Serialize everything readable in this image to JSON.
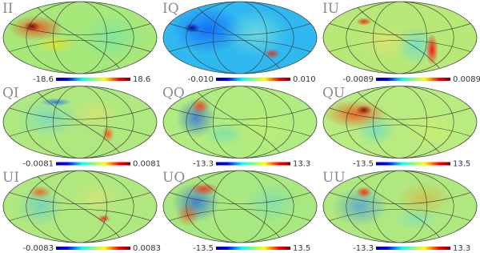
{
  "panels": [
    {
      "label": "II",
      "colorbar": {
        "min": "-18.6",
        "max": "18.6"
      }
    },
    {
      "label": "IQ",
      "colorbar": {
        "min": "-0.010",
        "max": "0.010"
      }
    },
    {
      "label": "IU",
      "colorbar": {
        "min": "-0.0089",
        "max": "0.0089"
      }
    },
    {
      "label": "QI",
      "colorbar": {
        "min": "-0.0081",
        "max": "0.0081"
      }
    },
    {
      "label": "QQ",
      "colorbar": {
        "min": "-13.3",
        "max": "13.3"
      }
    },
    {
      "label": "QU",
      "colorbar": {
        "min": "-13.5",
        "max": "13.5"
      }
    },
    {
      "label": "UI",
      "colorbar": {
        "min": "-0.0083",
        "max": "0.0083"
      }
    },
    {
      "label": "UQ",
      "colorbar": {
        "min": "-13.5",
        "max": "13.5"
      }
    },
    {
      "label": "UU",
      "colorbar": {
        "min": "-13.3",
        "max": "13.3"
      }
    }
  ]
}
